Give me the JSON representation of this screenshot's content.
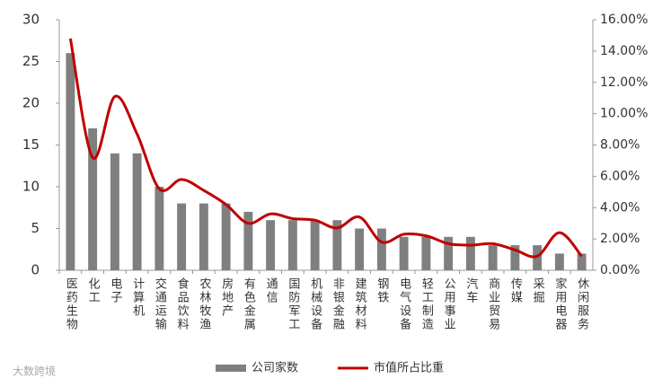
{
  "chart_data": {
    "type": "bar_line",
    "categories": [
      "医药生物",
      "化工",
      "电子",
      "计算机",
      "交通运输",
      "食品饮料",
      "农林牧渔",
      "房地产",
      "有色金属",
      "通信",
      "国防军工",
      "机械设备",
      "非银金融",
      "建筑材料",
      "钢铁",
      "电气设备",
      "轻工制造",
      "公用事业",
      "汽车",
      "商业贸易",
      "传媒",
      "采掘",
      "家用电器",
      "休闲服务"
    ],
    "series": [
      {
        "name": "公司家数",
        "type": "bar",
        "color": "#7f7f7f",
        "values": [
          26,
          17,
          14,
          14,
          10,
          8,
          8,
          8,
          7,
          6,
          6,
          6,
          6,
          5,
          5,
          4,
          4,
          4,
          4,
          3,
          3,
          3,
          2,
          2
        ]
      },
      {
        "name": "市值所占比重",
        "type": "line",
        "axis": "y2",
        "color": "#c00000",
        "values": [
          14.8,
          7.2,
          11.1,
          8.7,
          5.2,
          5.8,
          5.1,
          4.2,
          3.0,
          3.6,
          3.3,
          3.2,
          2.7,
          3.4,
          1.8,
          2.3,
          2.2,
          1.7,
          1.6,
          1.7,
          1.3,
          0.9,
          2.4,
          0.9
        ]
      }
    ],
    "ylim": [
      0,
      30
    ],
    "yticks": [
      0,
      5,
      10,
      15,
      20,
      25,
      30
    ],
    "y2lim": [
      0,
      16
    ],
    "y2ticks": [
      {
        "value": 0,
        "label": "0.00%"
      },
      {
        "value": 2,
        "label": "2.00%"
      },
      {
        "value": 4,
        "label": "4.00%"
      },
      {
        "value": 6,
        "label": "6.00%"
      },
      {
        "value": 8,
        "label": "8.00%"
      },
      {
        "value": 10,
        "label": "10.00%"
      },
      {
        "value": 12,
        "label": "12.00%"
      },
      {
        "value": 14,
        "label": "14.00%"
      },
      {
        "value": 16,
        "label": "16.00%"
      }
    ],
    "watermark": "大数跨境"
  }
}
